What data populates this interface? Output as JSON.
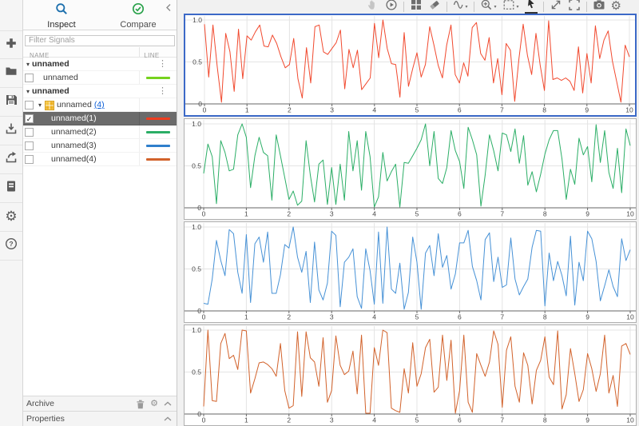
{
  "left_toolstrip": [
    {
      "name": "add",
      "icon": "plus-icon"
    },
    {
      "name": "open",
      "icon": "folder-icon"
    },
    {
      "name": "save",
      "icon": "save-icon"
    },
    {
      "name": "import",
      "icon": "import-icon"
    },
    {
      "name": "export",
      "icon": "export-icon"
    },
    {
      "name": "create-report",
      "icon": "report-document-icon"
    },
    {
      "name": "preferences",
      "icon": "gear-icon"
    },
    {
      "name": "help",
      "icon": "help-icon"
    }
  ],
  "panel": {
    "tabs": [
      {
        "label": "Inspect"
      },
      {
        "label": "Compare"
      }
    ],
    "filter_placeholder": "Filter Signals",
    "columns": [
      "NAME",
      "LINE"
    ],
    "rows": [
      {
        "type": "group",
        "label": "unnamed"
      },
      {
        "type": "signal",
        "level": 1,
        "label": "unnamed",
        "checked": false,
        "color": "#76d21e"
      },
      {
        "type": "group",
        "label": "unnamed"
      },
      {
        "type": "bus",
        "level": 1,
        "label": "unnamed",
        "link": "(4)",
        "checked": false
      },
      {
        "type": "signal",
        "level": 2,
        "label": "unnamed(1)",
        "checked": true,
        "selected": true,
        "color": "#ee3d1f"
      },
      {
        "type": "signal",
        "level": 2,
        "label": "unnamed(2)",
        "checked": false,
        "color": "#2bae66"
      },
      {
        "type": "signal",
        "level": 2,
        "label": "unnamed(3)",
        "checked": false,
        "color": "#2f7fcc"
      },
      {
        "type": "signal",
        "level": 2,
        "label": "unnamed(4)",
        "checked": false,
        "color": "#d2622b"
      }
    ],
    "archive": {
      "label": "Archive"
    },
    "properties": {
      "label": "Properties"
    }
  },
  "toolbar": [
    {
      "icon": "pan-hand-icon",
      "disabled": true
    },
    {
      "icon": "replay-icon"
    },
    {
      "sep": true
    },
    {
      "icon": "subplot-layout-icon"
    },
    {
      "icon": "eraser-icon"
    },
    {
      "sep": true
    },
    {
      "icon": "signal-wave-icon",
      "dropdown": true
    },
    {
      "sep": true
    },
    {
      "icon": "zoom-in-icon",
      "dropdown": true
    },
    {
      "icon": "fit-to-view-icon",
      "dropdown": true
    },
    {
      "icon": "cursor-arrow-icon",
      "active": true
    },
    {
      "sep": true
    },
    {
      "icon": "expand-icon"
    },
    {
      "icon": "fullscreen-icon"
    },
    {
      "sep": true
    },
    {
      "icon": "snapshot-camera-icon"
    },
    {
      "icon": "settings-gear-icon"
    }
  ],
  "chart_data": [
    {
      "type": "line",
      "title": "",
      "xlabel": "",
      "ylabel": "",
      "selected": true,
      "x_range": [
        0,
        10
      ],
      "y_range": [
        0,
        1
      ],
      "grid": true,
      "x_ticks": [
        "0",
        "1",
        "2",
        "3",
        "4",
        "5",
        "6",
        "7",
        "8",
        "9",
        "10"
      ],
      "y_ticks": [
        {
          "label": "1.0",
          "v": 1
        },
        {
          "label": "0.5",
          "v": 0.5
        },
        {
          "label": "0",
          "v": 0
        }
      ],
      "series_name": "unnamed(1)",
      "color": "#f1492e",
      "values": [
        0.95,
        0.32,
        0.94,
        0.44,
        0.02,
        0.84,
        0.62,
        0.15,
        0.89,
        0.3,
        0.81,
        0.76,
        0.86,
        0.94,
        0.69,
        0.68,
        0.82,
        0.72,
        0.56,
        0.43,
        0.47,
        0.78,
        0.3,
        0.07,
        0.67,
        0.25,
        0.92,
        0.94,
        0.62,
        0.59,
        0.66,
        0.73,
        0.88,
        0.18,
        0.65,
        0.43,
        0.64,
        0.17,
        0.24,
        0.31,
        0.96,
        0.55,
        1.0,
        0.66,
        0.48,
        0.47,
        0.08,
        0.85,
        0.21,
        0.42,
        0.61,
        0.32,
        0.47,
        0.92,
        0.7,
        0.46,
        0.31,
        0.7,
        0.94,
        0.35,
        0.25,
        0.49,
        0.33,
        0.91,
        0.97,
        0.6,
        0.52,
        0.79,
        0.25,
        0.54,
        0.11,
        0.72,
        0.64,
        0.03,
        0.54,
        0.95,
        0.58,
        0.35,
        0.84,
        0.46,
        0.16,
        0.99,
        0.29,
        0.31,
        0.28,
        0.31,
        0.27,
        0.16,
        0.68,
        0.13,
        0.6,
        0.25,
        0.93,
        0.54,
        0.76,
        0.87,
        0.51,
        0.27,
        0.02,
        0.7,
        0.56
      ]
    },
    {
      "type": "line",
      "title": "",
      "xlabel": "",
      "ylabel": "",
      "selected": false,
      "x_range": [
        0,
        10
      ],
      "y_range": [
        0,
        1
      ],
      "grid": true,
      "x_ticks": [
        "0",
        "1",
        "2",
        "3",
        "4",
        "5",
        "6",
        "7",
        "8",
        "9",
        "10"
      ],
      "y_ticks": [
        {
          "label": "1.0",
          "v": 1
        },
        {
          "label": "0.5",
          "v": 0.5
        },
        {
          "label": "0",
          "v": 0
        }
      ],
      "series_name": "unnamed(2)",
      "color": "#2bae66",
      "values": [
        0.41,
        0.76,
        0.61,
        0.05,
        0.8,
        0.66,
        0.44,
        0.46,
        0.87,
        1.0,
        0.84,
        0.24,
        0.62,
        0.84,
        0.66,
        0.62,
        0.09,
        0.87,
        0.62,
        0.36,
        0.1,
        0.2,
        0.03,
        0.08,
        0.8,
        0.39,
        0.07,
        0.52,
        0.57,
        0.04,
        0.48,
        0.04,
        0.52,
        0.09,
        0.91,
        0.44,
        0.8,
        0.21,
        0.91,
        0.61,
        0.01,
        0.13,
        0.66,
        0.32,
        0.43,
        0.52,
        0.01,
        0.54,
        0.53,
        0.62,
        0.71,
        0.81,
        1.0,
        0.5,
        0.91,
        0.35,
        0.29,
        0.48,
        0.92,
        0.68,
        0.55,
        0.23,
        0.96,
        0.81,
        0.63,
        0.02,
        0.39,
        0.87,
        0.68,
        0.44,
        0.89,
        0.87,
        0.67,
        0.94,
        0.53,
        0.86,
        0.27,
        0.43,
        0.19,
        0.4,
        0.64,
        0.81,
        0.92,
        0.92,
        0.58,
        0.1,
        0.46,
        0.28,
        0.83,
        0.63,
        0.73,
        0.31,
        0.99,
        0.54,
        0.92,
        0.42,
        0.23,
        0.71,
        0.18,
        0.94,
        0.74
      ]
    },
    {
      "type": "line",
      "title": "",
      "xlabel": "",
      "ylabel": "",
      "selected": false,
      "x_range": [
        0,
        10
      ],
      "y_range": [
        0,
        1
      ],
      "grid": true,
      "x_ticks": [
        "0",
        "1",
        "2",
        "3",
        "4",
        "5",
        "6",
        "7",
        "8",
        "9",
        "10"
      ],
      "y_ticks": [
        {
          "label": "1.0",
          "v": 1
        },
        {
          "label": "0.5",
          "v": 0.5
        },
        {
          "label": "0",
          "v": 0
        }
      ],
      "series_name": "unnamed(3)",
      "color": "#4691d6",
      "values": [
        0.09,
        0.08,
        0.38,
        0.84,
        0.6,
        0.42,
        0.97,
        0.92,
        0.46,
        0.21,
        0.91,
        0.1,
        0.8,
        0.88,
        0.58,
        0.94,
        0.21,
        0.21,
        0.43,
        0.79,
        0.75,
        1.0,
        0.64,
        0.46,
        0.71,
        0.1,
        0.82,
        0.25,
        0.13,
        0.33,
        0.95,
        0.9,
        0.05,
        0.58,
        0.64,
        0.74,
        0.17,
        0.03,
        0.74,
        0.48,
        0.08,
        0.94,
        0.09,
        1.0,
        0.26,
        0.21,
        0.57,
        0.02,
        0.22,
        0.88,
        0.58,
        0.02,
        0.69,
        0.78,
        0.42,
        0.92,
        0.52,
        0.66,
        0.26,
        0.44,
        0.81,
        0.81,
        0.96,
        0.53,
        0.36,
        0.13,
        0.85,
        0.93,
        0.35,
        0.64,
        0.28,
        0.31,
        0.87,
        0.38,
        0.19,
        0.29,
        0.38,
        0.76,
        0.96,
        0.95,
        0.06,
        0.69,
        0.36,
        0.59,
        0.42,
        0.18,
        0.89,
        0.07,
        0.58,
        0.36,
        0.95,
        0.86,
        0.59,
        0.12,
        0.3,
        0.49,
        0.29,
        0.17,
        0.86,
        0.6,
        0.73
      ]
    },
    {
      "type": "line",
      "title": "",
      "xlabel": "",
      "ylabel": "",
      "selected": false,
      "x_range": [
        0,
        10
      ],
      "y_range": [
        0,
        1
      ],
      "grid": true,
      "x_ticks": [
        "0",
        "1",
        "2",
        "3",
        "4",
        "5",
        "6",
        "7",
        "8",
        "9",
        "10"
      ],
      "y_ticks": [
        {
          "label": "1.0",
          "v": 1
        },
        {
          "label": "0.5",
          "v": 0.5
        },
        {
          "label": "0",
          "v": 0
        }
      ],
      "series_name": "unnamed(4)",
      "color": "#d2622b",
      "values": [
        0.09,
        1.0,
        0.16,
        0.15,
        0.84,
        0.96,
        0.66,
        0.7,
        0.53,
        1.0,
        0.99,
        0.25,
        0.42,
        0.61,
        0.62,
        0.59,
        0.54,
        0.45,
        0.84,
        0.28,
        0.07,
        0.1,
        0.98,
        0.21,
        0.98,
        0.67,
        0.62,
        0.33,
        0.91,
        0.14,
        0.28,
        0.93,
        0.58,
        0.47,
        0.51,
        0.75,
        0.24,
        0.94,
        0.01,
        0.01,
        0.79,
        0.58,
        1.0,
        0.97,
        0.07,
        0.04,
        0.02,
        0.54,
        0.25,
        0.85,
        0.33,
        0.48,
        0.79,
        0.89,
        0.26,
        0.32,
        0.94,
        0.4,
        0.88,
        0.01,
        0.28,
        0.94,
        0.14,
        0.02,
        0.72,
        0.58,
        0.45,
        0.62,
        0.99,
        0.83,
        0.08,
        0.76,
        0.92,
        0.33,
        0.14,
        0.73,
        0.58,
        0.12,
        0.52,
        0.64,
        0.92,
        0.44,
        0.35,
        0.99,
        0.06,
        0.23,
        0.78,
        0.48,
        0.15,
        0.29,
        0.72,
        0.54,
        0.27,
        0.48,
        0.94,
        0.25,
        0.46,
        0.09,
        0.81,
        0.84,
        0.71
      ]
    }
  ]
}
